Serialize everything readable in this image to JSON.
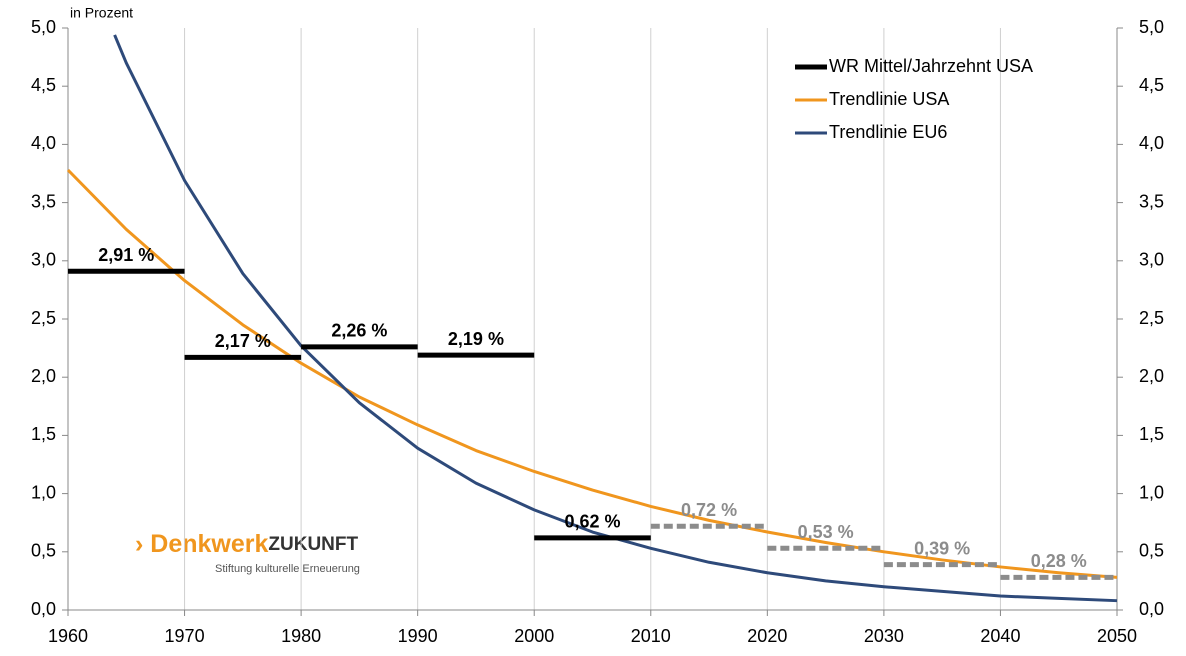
{
  "chart_data": {
    "type": "line",
    "y_unit_label": "in Prozent",
    "xlim": [
      1960,
      2050
    ],
    "xticks": [
      1960,
      1970,
      1980,
      1990,
      2000,
      2010,
      2020,
      2030,
      2040,
      2050
    ],
    "ylim": [
      0,
      5
    ],
    "yticks": [
      {
        "value": 0,
        "label": "0,0"
      },
      {
        "value": 0.5,
        "label": "0,5"
      },
      {
        "value": 1,
        "label": "1,0"
      },
      {
        "value": 1.5,
        "label": "1,5"
      },
      {
        "value": 2,
        "label": "2,0"
      },
      {
        "value": 2.5,
        "label": "2,5"
      },
      {
        "value": 3,
        "label": "3,0"
      },
      {
        "value": 3.5,
        "label": "3,5"
      },
      {
        "value": 4,
        "label": "4,0"
      },
      {
        "value": 4.5,
        "label": "4,5"
      },
      {
        "value": 5,
        "label": "5,0"
      }
    ],
    "y2lim": [
      0,
      5
    ],
    "y2ticks": [
      {
        "value": 0,
        "label": "0,0"
      },
      {
        "value": 0.5,
        "label": "0,5"
      },
      {
        "value": 1,
        "label": "1,0"
      },
      {
        "value": 1.5,
        "label": "1,5"
      },
      {
        "value": 2,
        "label": "2,0"
      },
      {
        "value": 2.5,
        "label": "2,5"
      },
      {
        "value": 3,
        "label": "3,0"
      },
      {
        "value": 3.5,
        "label": "3,5"
      },
      {
        "value": 4,
        "label": "4,0"
      },
      {
        "value": 4.5,
        "label": "4,5"
      },
      {
        "value": 5,
        "label": "5,0"
      }
    ],
    "grid": "x",
    "legend": "top-right",
    "decade_segments": [
      {
        "name": "WR Mittel/Jahrzehnt USA",
        "color": "#000000",
        "dashed": false,
        "x": [
          1960,
          1970,
          1980,
          1990,
          2000
        ],
        "x_end": [
          1970,
          1980,
          1990,
          2000,
          2010
        ],
        "values": [
          2.91,
          2.17,
          2.26,
          2.19,
          0.62
        ],
        "value_labels": [
          "2,91 %",
          "2,17 %",
          "2,26 %",
          "2,19 %",
          "0,62 %"
        ]
      },
      {
        "color": "#8c8c8c",
        "dashed": true,
        "x": [
          2010,
          2020,
          2030,
          2040
        ],
        "x_end": [
          2020,
          2030,
          2040,
          2050
        ],
        "values": [
          0.72,
          0.53,
          0.39,
          0.28
        ],
        "value_labels": [
          "0,72 %",
          "0,53 %",
          "0,39 %",
          "0,28 %"
        ]
      }
    ],
    "series": [
      {
        "name": "Trendlinie USA",
        "color": "#f0961e",
        "x": [
          1960,
          1965,
          1970,
          1975,
          1980,
          1985,
          1990,
          1995,
          2000,
          2005,
          2010,
          2015,
          2020,
          2025,
          2030,
          2035,
          2040,
          2045,
          2050
        ],
        "values": [
          3.78,
          3.27,
          2.83,
          2.45,
          2.12,
          1.83,
          1.59,
          1.37,
          1.19,
          1.03,
          0.89,
          0.77,
          0.67,
          0.58,
          0.5,
          0.43,
          0.37,
          0.32,
          0.28
        ]
      },
      {
        "name": "Trendlinie EU6",
        "color": "#2e4a7a",
        "x": [
          1964,
          1965,
          1970,
          1975,
          1980,
          1985,
          1990,
          1995,
          2000,
          2005,
          2010,
          2015,
          2020,
          2025,
          2030,
          2035,
          2040,
          2045,
          2050
        ],
        "values": [
          4.94,
          4.7,
          3.69,
          2.89,
          2.27,
          1.78,
          1.39,
          1.09,
          0.86,
          0.67,
          0.53,
          0.41,
          0.32,
          0.25,
          0.2,
          0.16,
          0.12,
          0.1,
          0.08
        ]
      }
    ],
    "logo": {
      "brand": "› Denkwerk",
      "brand_bold": "ZUKUNFT",
      "tagline": "Stiftung kulturelle Erneuerung"
    }
  }
}
